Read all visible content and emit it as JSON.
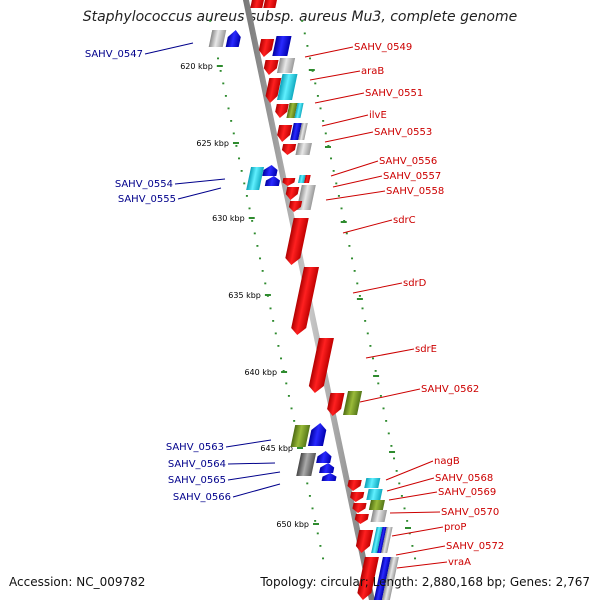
{
  "title": "Staphylococcus aureus subsp. aureus Mu3, complete genome",
  "accession": "Accession: NC_009782",
  "topology": "Topology: circular; Length: 2,880,168 bp; Genes: 2,767",
  "ticks": [
    "620 kbp",
    "625 kbp",
    "630 kbp",
    "635 kbp",
    "640 kbp",
    "645 kbp",
    "650 kbp"
  ],
  "forward_labels": [
    "SAHV_0549",
    "araB",
    "SAHV_0551",
    "ilvE",
    "SAHV_0553",
    "SAHV_0556",
    "SAHV_0557",
    "SAHV_0558",
    "sdrC",
    "sdrD",
    "sdrE",
    "SAHV_0562",
    "nagB",
    "SAHV_0568",
    "SAHV_0569",
    "SAHV_0570",
    "proP",
    "SAHV_0572",
    "vraA"
  ],
  "reverse_labels": [
    "SAHV_0547",
    "SAHV_0554",
    "SAHV_0555",
    "SAHV_0563",
    "SAHV_0564",
    "SAHV_0565",
    "SAHV_0566"
  ],
  "colors": {
    "forward_gene": "#ee0000",
    "reverse_gene": "#0000ee",
    "cyan_feature": "#22c8d8",
    "olive_feature": "#6b8e23",
    "gray_feature": "#a8a8a8",
    "forward_label": "#cc0000",
    "reverse_label": "#00008b",
    "tick": "#2e8b2e"
  }
}
